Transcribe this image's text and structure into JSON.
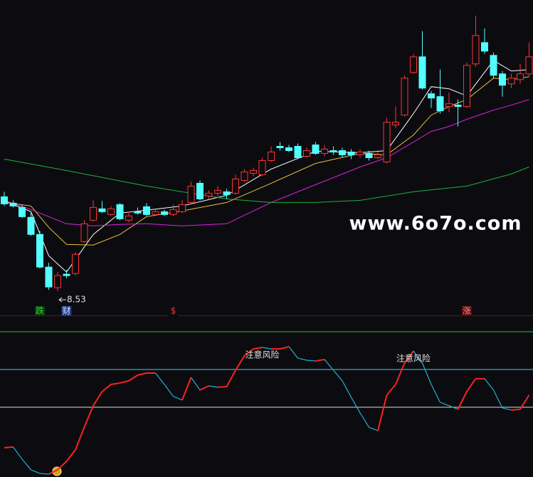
{
  "chart_data": [
    {
      "type": "candlestick",
      "open": [
        9.86,
        9.77,
        9.71,
        9.57,
        9.33,
        8.87,
        8.58,
        8.77,
        8.78,
        9.23,
        9.53,
        9.69,
        9.61,
        9.75,
        9.53,
        9.65,
        9.72,
        9.61,
        9.65,
        9.61,
        9.65,
        9.78,
        10.05,
        9.87,
        9.91,
        9.93,
        9.91,
        10.09,
        10.19,
        10.17,
        10.37,
        10.57,
        10.55,
        10.57,
        10.43,
        10.59,
        10.47,
        10.51,
        10.51,
        10.49,
        10.45,
        10.47,
        10.41,
        10.35,
        10.87,
        11.01,
        11.61,
        11.83,
        11.31,
        11.27,
        11.13,
        11.15,
        11.13,
        11.73,
        12.03,
        11.85,
        11.59,
        11.45,
        11.51,
        11.59
      ],
      "high": [
        9.93,
        9.81,
        9.75,
        9.63,
        9.38,
        8.93,
        8.8,
        8.83,
        9.08,
        9.53,
        9.81,
        9.8,
        9.73,
        9.77,
        9.65,
        9.71,
        9.77,
        9.68,
        9.68,
        9.75,
        9.81,
        10.07,
        10.09,
        9.95,
        10.01,
        9.97,
        10.17,
        10.25,
        10.27,
        10.41,
        10.57,
        10.63,
        10.59,
        10.61,
        10.55,
        10.63,
        10.59,
        10.57,
        10.55,
        10.53,
        10.53,
        10.51,
        10.49,
        10.97,
        11.13,
        11.57,
        11.87,
        12.19,
        11.35,
        11.65,
        11.33,
        11.23,
        11.75,
        12.41,
        12.23,
        11.89,
        11.63,
        11.59,
        11.73,
        12.03
      ],
      "low": [
        9.73,
        9.71,
        9.56,
        9.31,
        8.85,
        8.55,
        8.53,
        8.71,
        8.75,
        9.21,
        9.51,
        9.63,
        9.59,
        9.53,
        9.5,
        9.61,
        9.59,
        9.59,
        9.59,
        9.59,
        9.63,
        9.76,
        9.81,
        9.83,
        9.87,
        9.83,
        9.89,
        10.07,
        10.15,
        10.15,
        10.35,
        10.51,
        10.49,
        10.39,
        10.41,
        10.45,
        10.43,
        10.45,
        10.41,
        10.39,
        10.41,
        10.37,
        10.39,
        10.33,
        10.83,
        10.99,
        11.59,
        11.37,
        11.11,
        11.03,
        11.05,
        10.85,
        11.11,
        11.69,
        11.87,
        11.53,
        11.27,
        11.39,
        11.45,
        11.55
      ],
      "close": [
        9.76,
        9.73,
        9.58,
        9.33,
        8.87,
        8.59,
        8.75,
        8.75,
        9.05,
        9.48,
        9.71,
        9.65,
        9.69,
        9.55,
        9.59,
        9.63,
        9.61,
        9.65,
        9.61,
        9.68,
        9.75,
        10.01,
        9.83,
        9.91,
        9.95,
        9.89,
        10.11,
        10.21,
        10.23,
        10.37,
        10.49,
        10.55,
        10.51,
        10.41,
        10.51,
        10.47,
        10.53,
        10.49,
        10.45,
        10.45,
        10.49,
        10.41,
        10.45,
        10.91,
        10.91,
        11.53,
        11.83,
        11.39,
        11.25,
        11.07,
        11.17,
        11.13,
        11.71,
        12.13,
        11.91,
        11.57,
        11.43,
        11.53,
        11.59,
        11.83
      ],
      "up_color": "#ff3232",
      "down_color": "#54ffff",
      "ylim": [
        8.19,
        12.63
      ],
      "lines": [
        {
          "color": "#ffffff",
          "x": [
            0,
            3,
            5,
            7,
            10,
            13,
            16,
            20,
            25,
            30,
            35,
            40,
            43,
            46,
            48,
            50,
            52,
            55,
            57,
            59
          ],
          "values": [
            9.8,
            9.65,
            9.03,
            8.8,
            9.33,
            9.63,
            9.67,
            9.73,
            9.88,
            10.25,
            10.5,
            10.48,
            10.51,
            11.03,
            11.41,
            11.38,
            11.28,
            11.78,
            11.63,
            11.65
          ]
        },
        {
          "color": "#e8c040",
          "x": [
            0,
            3,
            5,
            7,
            10,
            13,
            16,
            20,
            25,
            30,
            35,
            40,
            43,
            46,
            48,
            50,
            52,
            55,
            57,
            59
          ],
          "values": [
            9.78,
            9.73,
            9.43,
            9.19,
            9.18,
            9.33,
            9.58,
            9.66,
            9.78,
            10.05,
            10.33,
            10.47,
            10.45,
            10.73,
            11.01,
            11.13,
            11.23,
            11.53,
            11.51,
            11.55
          ]
        },
        {
          "color": "#e020e0",
          "x": [
            0,
            3,
            5,
            7,
            10,
            13,
            16,
            20,
            25,
            30,
            35,
            40,
            43,
            46,
            48,
            50,
            52,
            55,
            57,
            59
          ],
          "values": [
            9.81,
            9.68,
            9.58,
            9.48,
            9.45,
            9.47,
            9.48,
            9.45,
            9.48,
            9.78,
            10.03,
            10.28,
            10.41,
            10.63,
            10.78,
            10.85,
            10.95,
            11.08,
            11.15,
            11.23
          ]
        },
        {
          "color": "#20b040",
          "x": [
            0,
            7,
            16,
            25,
            30,
            35,
            40,
            46,
            52,
            57,
            59
          ],
          "values": [
            10.39,
            10.23,
            10.01,
            9.83,
            9.78,
            9.78,
            9.81,
            9.93,
            10.01,
            10.18,
            10.28
          ]
        }
      ],
      "signals": [
        {
          "text": "跌",
          "x": 4,
          "color": "#30d030",
          "box": "#0a3a0a"
        },
        {
          "text": "财",
          "x": 7,
          "color": "#e0e0ff",
          "box": "#1a3a8a"
        },
        {
          "text": "$",
          "x": 19,
          "color": "#ff3030",
          "box": "#0c0c10"
        },
        {
          "text": "涨",
          "x": 52,
          "color": "#ff9090",
          "box": "#5a0a0a"
        }
      ]
    },
    {
      "type": "line",
      "values": [
        38.5,
        38.9,
        32.5,
        26.8,
        24.9,
        24.5,
        26.8,
        31.3,
        37.4,
        49.4,
        60.8,
        68.3,
        72.1,
        72.8,
        74.0,
        77.0,
        78.1,
        78.1,
        72.1,
        65.7,
        63.8,
        75.8,
        69.1,
        71.3,
        70.6,
        70.9,
        79.6,
        87.2,
        90.9,
        91.7,
        90.9,
        90.9,
        92.1,
        86.0,
        84.9,
        84.5,
        85.3,
        79.6,
        74.0,
        65.3,
        57.0,
        49.4,
        47.5,
        66.4,
        72.1,
        83.4,
        89.8,
        83.4,
        72.1,
        62.6,
        60.8,
        58.9,
        68.3,
        75.1,
        75.1,
        69.1,
        59.6,
        58.5,
        58.9,
        66.4
      ],
      "up_color": "#ff2020",
      "down_color": "#20b0d0",
      "ylim": [
        23,
        108.3
      ],
      "reference_lines": [
        {
          "value": 100,
          "color": "#20c020"
        },
        {
          "value": 80,
          "color": "#40d0e0"
        },
        {
          "value": 60,
          "color": "#e0e0e0"
        }
      ],
      "annotations": [
        {
          "text": "注意风险",
          "x": 29
        },
        {
          "text": "注意风险",
          "x": 46
        }
      ]
    }
  ],
  "watermark": "www.6o7o.com"
}
